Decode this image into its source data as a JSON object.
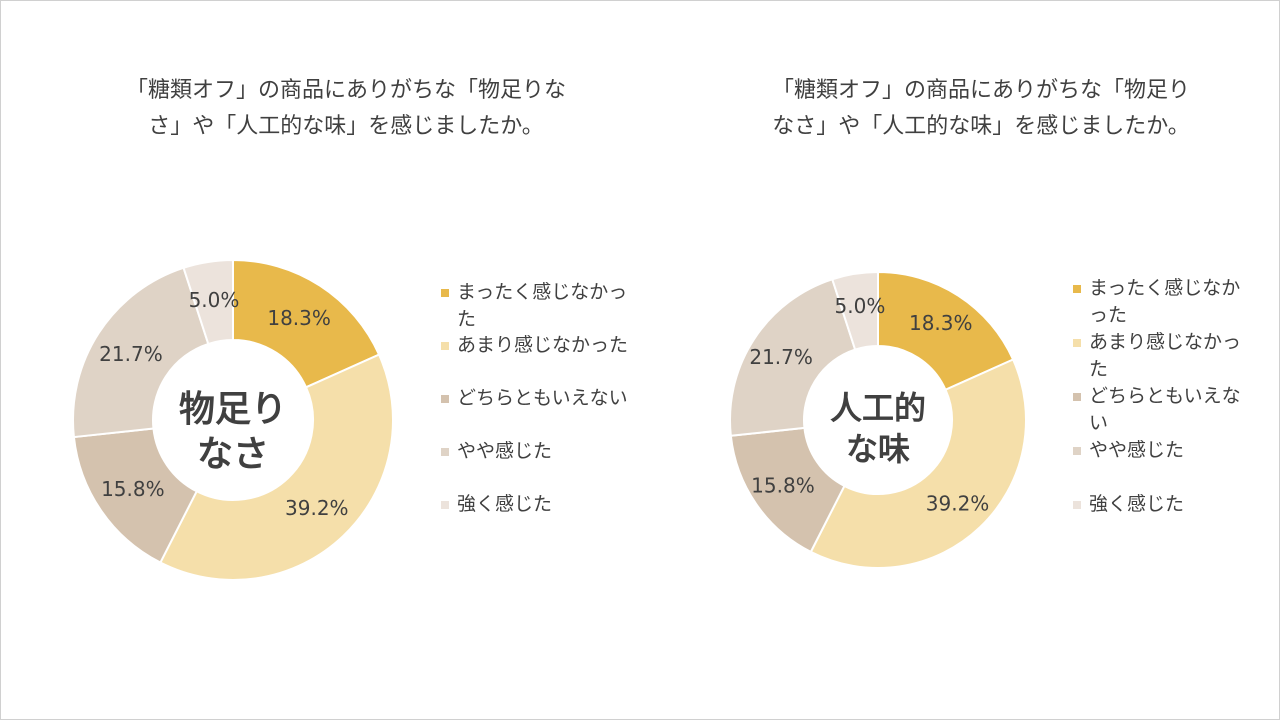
{
  "colors": {
    "slice_1": "#E8B94B",
    "slice_2": "#F5DFAA",
    "slice_3": "#D4C2AE",
    "slice_4": "#DFD3C6",
    "slice_5": "#ECE3DC"
  },
  "chart_data": [
    {
      "type": "pie",
      "donut": true,
      "title_lines": [
        "「糖類オフ」の商品にありがちな「物足りな",
        "さ」や「人工的な味」を感じましたか。"
      ],
      "center_label_lines": [
        "物足り",
        "なさ"
      ],
      "categories": [
        "まったく感じなかった",
        "あまり感じなかった",
        "どちらともいえない",
        "やや感じた",
        "強く感じた"
      ],
      "values": [
        18.3,
        39.2,
        15.8,
        21.7,
        5.0
      ],
      "value_labels": [
        "18.3%",
        "39.2%",
        "15.8%",
        "21.7%",
        "5.0%"
      ],
      "legend_position": "right"
    },
    {
      "type": "pie",
      "donut": true,
      "title_lines": [
        "「糖類オフ」の商品にありがちな「物足り",
        "なさ」や「人工的な味」を感じましたか。"
      ],
      "center_label_lines": [
        "人工的",
        "な味"
      ],
      "categories": [
        "まったく感じなかった",
        "あまり感じなかった",
        "どちらともいえない",
        "やや感じた",
        "強く感じた"
      ],
      "values": [
        18.3,
        39.2,
        15.8,
        21.7,
        5.0
      ],
      "value_labels": [
        "18.3%",
        "39.2%",
        "15.8%",
        "21.7%",
        "5.0%"
      ],
      "legend_position": "right"
    }
  ]
}
